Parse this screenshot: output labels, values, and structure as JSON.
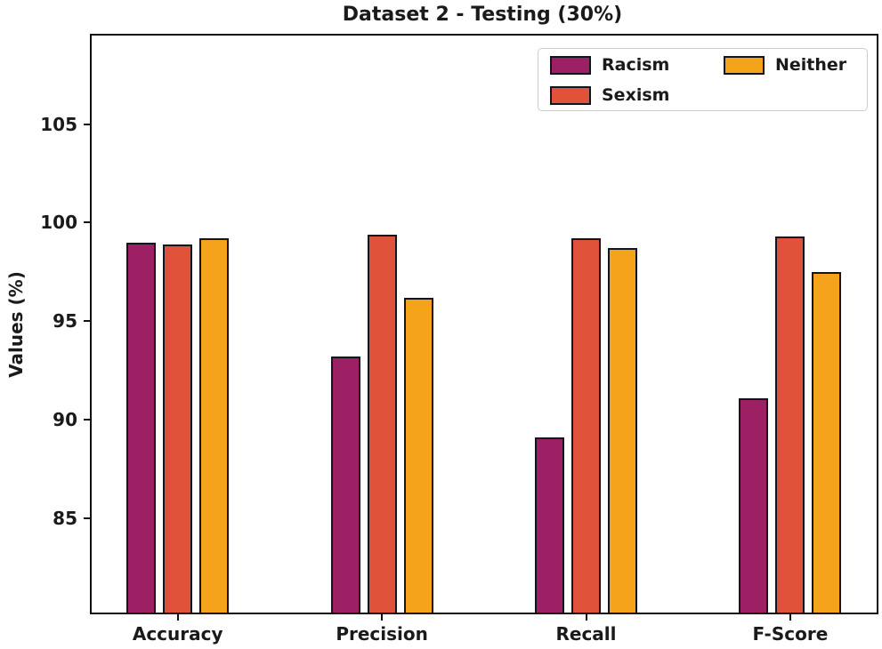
{
  "chart_data": {
    "type": "bar",
    "title": "Dataset 2 - Testing (30%)",
    "ylabel": "Values (%)",
    "xlabel": "",
    "categories": [
      "Accuracy",
      "Precision",
      "Recall",
      "F-Score"
    ],
    "series": [
      {
        "name": "Racism",
        "color": "#9e2064",
        "values": [
          99.0,
          93.2,
          89.1,
          91.1
        ]
      },
      {
        "name": "Sexism",
        "color": "#e0533a",
        "values": [
          98.9,
          99.4,
          99.2,
          99.3
        ]
      },
      {
        "name": "Neither",
        "color": "#f6a31c",
        "values": [
          99.2,
          96.2,
          98.7,
          97.5
        ]
      }
    ],
    "yticks": [
      85,
      90,
      95,
      100,
      105
    ],
    "ylim": [
      80.2,
      109.5
    ],
    "bar_edge_color": "#14141e",
    "grid": false,
    "legend": {
      "position": "upper-right",
      "columns": 2,
      "order": "column-major"
    }
  }
}
